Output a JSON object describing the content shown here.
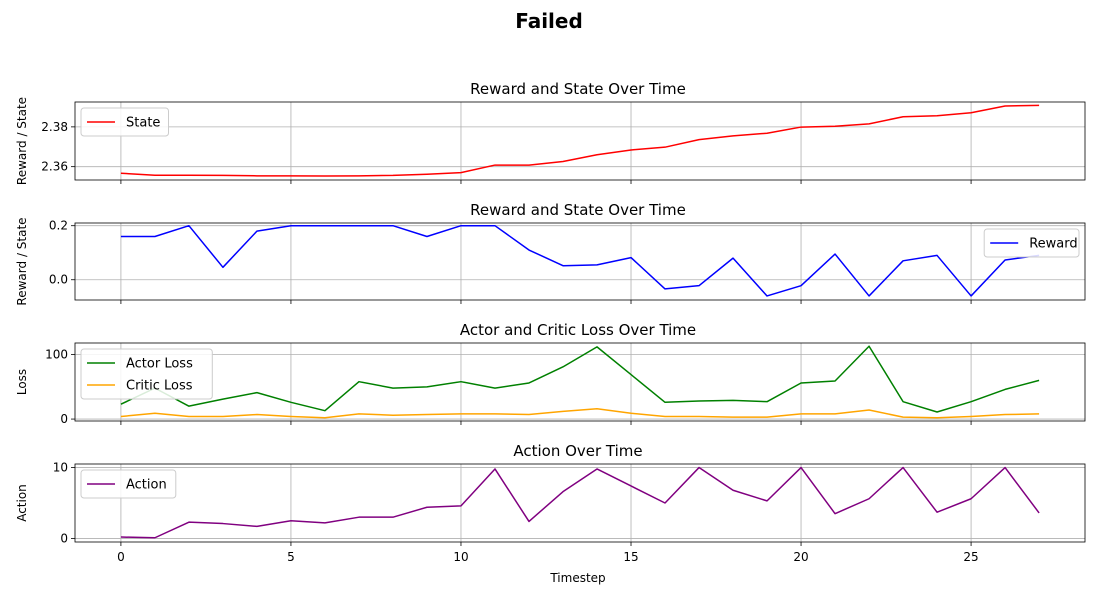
{
  "figure": {
    "suptitle": "Failed"
  },
  "chart_data": [
    {
      "type": "line",
      "title": "Reward and State Over Time",
      "xlabel": "",
      "ylabel": "Reward / State",
      "xlim": [
        -1.35,
        28.35
      ],
      "ylim": [
        2.3533,
        2.3925
      ],
      "xticks": [
        0,
        5,
        10,
        15,
        20,
        25
      ],
      "yticks": [
        2.36,
        2.38
      ],
      "ytick_labels": [
        "2.36",
        "2.38"
      ],
      "grid": true,
      "legend": "upper-left",
      "series": [
        {
          "name": "State",
          "color": "#ff0000",
          "x": [
            0,
            1,
            2,
            3,
            4,
            5,
            6,
            7,
            8,
            9,
            10,
            11,
            12,
            13,
            14,
            15,
            16,
            17,
            18,
            19,
            20,
            21,
            22,
            23,
            24,
            25,
            26,
            27
          ],
          "y": [
            2.3567,
            2.3557,
            2.3557,
            2.3556,
            2.3554,
            2.3554,
            2.3553,
            2.3554,
            2.3556,
            2.3562,
            2.357,
            2.3608,
            2.3608,
            2.3626,
            2.366,
            2.3684,
            2.3698,
            2.3736,
            2.3755,
            2.3768,
            2.3799,
            2.3803,
            2.3815,
            2.3851,
            2.3856,
            2.3871,
            2.3905,
            2.3908
          ]
        }
      ]
    },
    {
      "type": "line",
      "title": "Reward and State Over Time",
      "xlabel": "",
      "ylabel": "Reward / State",
      "xlim": [
        -1.35,
        28.35
      ],
      "ylim": [
        -0.075,
        0.21
      ],
      "xticks": [
        0,
        5,
        10,
        15,
        20,
        25
      ],
      "yticks": [
        0.0,
        0.2
      ],
      "ytick_labels": [
        "0.0",
        "0.2"
      ],
      "grid": true,
      "legend": "upper-right",
      "series": [
        {
          "name": "Reward",
          "color": "#0000ff",
          "x": [
            0,
            1,
            2,
            3,
            4,
            5,
            6,
            7,
            8,
            9,
            10,
            11,
            12,
            13,
            14,
            15,
            16,
            17,
            18,
            19,
            20,
            21,
            22,
            23,
            24,
            25,
            26,
            27
          ],
          "y": [
            0.16,
            0.16,
            0.2,
            0.046,
            0.18,
            0.2,
            0.2,
            0.2,
            0.2,
            0.16,
            0.2,
            0.2,
            0.11,
            0.052,
            0.055,
            0.082,
            -0.034,
            -0.022,
            0.08,
            -0.06,
            -0.022,
            0.095,
            -0.06,
            0.07,
            0.09,
            -0.06,
            0.073,
            0.09
          ]
        }
      ]
    },
    {
      "type": "line",
      "title": "Actor and Critic Loss Over Time",
      "xlabel": "",
      "ylabel": "Loss",
      "xlim": [
        -1.35,
        28.35
      ],
      "ylim": [
        -3,
        118
      ],
      "xticks": [
        0,
        5,
        10,
        15,
        20,
        25
      ],
      "yticks": [
        0,
        100
      ],
      "ytick_labels": [
        "0",
        "100"
      ],
      "grid": true,
      "legend": "upper-left",
      "series": [
        {
          "name": "Actor Loss",
          "color": "#008000",
          "x": [
            0,
            1,
            2,
            3,
            4,
            5,
            6,
            7,
            8,
            9,
            10,
            11,
            12,
            13,
            14,
            15,
            16,
            17,
            18,
            19,
            20,
            21,
            22,
            23,
            24,
            25,
            26,
            27
          ],
          "y": [
            23,
            48,
            20,
            31,
            41,
            26,
            13,
            58,
            48,
            50,
            58,
            48,
            56,
            81,
            112,
            69,
            26,
            28,
            29,
            27,
            56,
            59,
            113,
            27,
            11,
            27,
            46,
            60
          ]
        },
        {
          "name": "Critic Loss",
          "color": "#ffa500",
          "x": [
            0,
            1,
            2,
            3,
            4,
            5,
            6,
            7,
            8,
            9,
            10,
            11,
            12,
            13,
            14,
            15,
            16,
            17,
            18,
            19,
            20,
            21,
            22,
            23,
            24,
            25,
            26,
            27
          ],
          "y": [
            4,
            9,
            4,
            4,
            7,
            4,
            2,
            8,
            6,
            7,
            8,
            8,
            7,
            12,
            16,
            9,
            4,
            4,
            3,
            3,
            8,
            8,
            14,
            3,
            2,
            4,
            7,
            8
          ]
        }
      ]
    },
    {
      "type": "line",
      "title": "Action Over Time",
      "xlabel": "Timestep",
      "ylabel": "Action",
      "xlim": [
        -1.35,
        28.35
      ],
      "ylim": [
        -0.5,
        10.5
      ],
      "xticks": [
        0,
        5,
        10,
        15,
        20,
        25
      ],
      "yticks": [
        0,
        10
      ],
      "ytick_labels": [
        "0",
        "10"
      ],
      "xtick_labels": [
        "0",
        "5",
        "10",
        "15",
        "20",
        "25"
      ],
      "grid": true,
      "legend": "upper-left",
      "series": [
        {
          "name": "Action",
          "color": "#800080",
          "x": [
            0,
            1,
            2,
            3,
            4,
            5,
            6,
            7,
            8,
            9,
            10,
            11,
            12,
            13,
            14,
            15,
            16,
            17,
            18,
            19,
            20,
            21,
            22,
            23,
            24,
            25,
            26,
            27
          ],
          "y": [
            0.2,
            0.1,
            2.3,
            2.1,
            1.7,
            2.5,
            2.2,
            3.0,
            3.0,
            4.4,
            4.6,
            9.8,
            2.4,
            6.6,
            9.8,
            7.4,
            5.0,
            10.0,
            6.8,
            5.3,
            10.0,
            3.5,
            5.6,
            10.0,
            3.7,
            5.6,
            10.0,
            3.6
          ]
        }
      ]
    }
  ]
}
